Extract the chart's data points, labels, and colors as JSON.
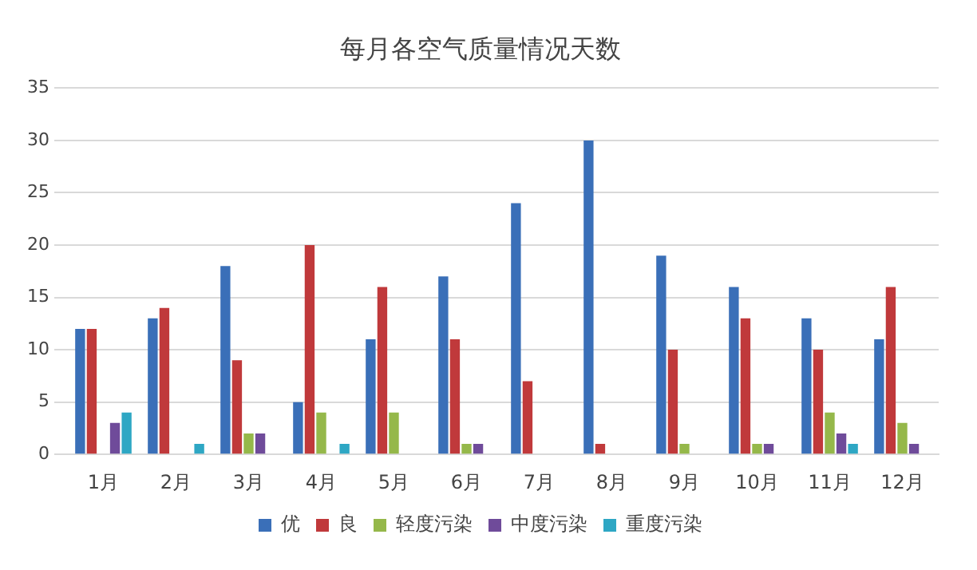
{
  "chart_data": {
    "type": "bar",
    "title": "每月各空气质量情况天数",
    "categories": [
      "1月",
      "2月",
      "3月",
      "4月",
      "5月",
      "6月",
      "7月",
      "8月",
      "9月",
      "10月",
      "11月",
      "12月"
    ],
    "series": [
      {
        "name": "优",
        "color": "#3a6fb8",
        "values": [
          12,
          13,
          18,
          5,
          11,
          17,
          24,
          30,
          19,
          16,
          13,
          11
        ]
      },
      {
        "name": "良",
        "color": "#c0393b",
        "values": [
          12,
          14,
          9,
          20,
          16,
          11,
          7,
          1,
          10,
          13,
          10,
          16
        ]
      },
      {
        "name": "轻度污染",
        "color": "#95b84a",
        "values": [
          0,
          0,
          2,
          4,
          4,
          1,
          0,
          0,
          1,
          1,
          4,
          3
        ]
      },
      {
        "name": "中度污染",
        "color": "#6f4b9a",
        "values": [
          3,
          0,
          2,
          0,
          0,
          1,
          0,
          0,
          0,
          1,
          2,
          1
        ]
      },
      {
        "name": "重度污染",
        "color": "#2ea7c4",
        "values": [
          4,
          1,
          0,
          1,
          0,
          0,
          0,
          0,
          0,
          0,
          1,
          0
        ]
      }
    ],
    "ylim": [
      0,
      35
    ],
    "yticks": [
      0,
      5,
      10,
      15,
      20,
      25,
      30,
      35
    ],
    "grid": "y",
    "legend": "bottom"
  }
}
